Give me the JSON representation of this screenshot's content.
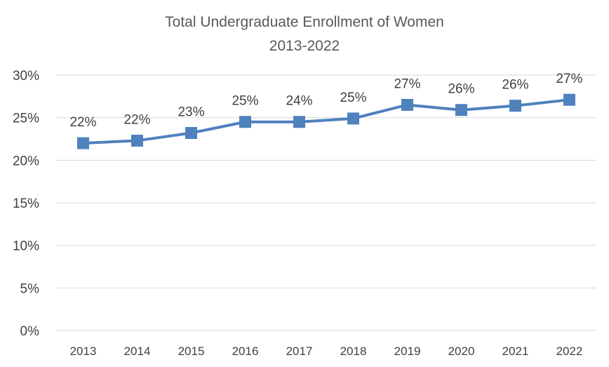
{
  "chart_data": {
    "type": "line",
    "title": "Total Undergraduate Enrollment of Women",
    "subtitle": "2013-2022",
    "categories": [
      "2013",
      "2014",
      "2015",
      "2016",
      "2017",
      "2018",
      "2019",
      "2020",
      "2021",
      "2022"
    ],
    "series": [
      {
        "values": [
          22.0,
          22.3,
          23.2,
          24.5,
          24.5,
          24.9,
          26.5,
          25.9,
          26.4,
          27.1
        ],
        "labels": [
          "22%",
          "22%",
          "23%",
          "25%",
          "24%",
          "25%",
          "27%",
          "26%",
          "26%",
          "27%"
        ],
        "color": "#4f81bd",
        "marker": "square"
      }
    ],
    "ylim": [
      0,
      30
    ],
    "yticks": [
      0,
      5,
      10,
      15,
      20,
      25,
      30
    ],
    "ytick_labels": [
      "0%",
      "5%",
      "10%",
      "15%",
      "20%",
      "25%",
      "30%"
    ],
    "xlabel": "",
    "ylabel": "",
    "grid": true,
    "legend": "none",
    "colors": {
      "line": "#4f81bd",
      "grid": "#d9d9d9",
      "text": "#404040",
      "title": "#595959"
    }
  }
}
